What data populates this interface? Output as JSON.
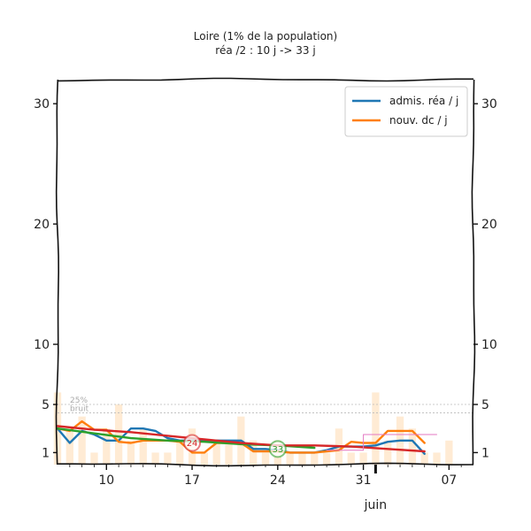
{
  "chart_data": {
    "type": "line",
    "title": "Loire (1% de la population)",
    "subtitle": "réa /2 : 10 j -> 33 j",
    "x_start": "2020-05-06",
    "x_end": "2020-06-09",
    "xticks": [
      {
        "date": "2020-05-10",
        "label": "10"
      },
      {
        "date": "2020-05-17",
        "label": "17"
      },
      {
        "date": "2020-05-24",
        "label": "24"
      },
      {
        "date": "2020-05-31",
        "label": "31"
      },
      {
        "date": "2020-06-07",
        "label": "07"
      }
    ],
    "month_label": {
      "date": "2020-06-01",
      "label": "juin"
    },
    "ylim": [
      0,
      32
    ],
    "yticks": [
      1,
      5,
      10,
      20,
      30
    ],
    "grid": false,
    "legend_position": "top-right",
    "reference_lines": [
      {
        "y": 5,
        "label": "25%"
      },
      {
        "y": 4.3,
        "label": "bruit"
      }
    ],
    "series": [
      {
        "name": "admis. réa / j",
        "color": "#1f77b4",
        "x": [
          "2020-05-06",
          "2020-05-07",
          "2020-05-08",
          "2020-05-09",
          "2020-05-10",
          "2020-05-11",
          "2020-05-12",
          "2020-05-13",
          "2020-05-14",
          "2020-05-15",
          "2020-05-16",
          "2020-05-17",
          "2020-05-18",
          "2020-05-19",
          "2020-05-20",
          "2020-05-21",
          "2020-05-22",
          "2020-05-23",
          "2020-05-24",
          "2020-05-25",
          "2020-05-26",
          "2020-05-27",
          "2020-05-28",
          "2020-05-29",
          "2020-05-30",
          "2020-05-31",
          "2020-06-01",
          "2020-06-02",
          "2020-06-03",
          "2020-06-04",
          "2020-06-05"
        ],
        "y": [
          3,
          1.8,
          2.8,
          2.5,
          2,
          2,
          3,
          3,
          2.8,
          2.2,
          2,
          2,
          2,
          2,
          2,
          2,
          1.3,
          1.3,
          1.2,
          1,
          1,
          1,
          1.2,
          1.5,
          1.5,
          1.5,
          1.6,
          1.9,
          2,
          2,
          0.9
        ]
      },
      {
        "name": "nouv. dc / j",
        "color": "#ff7f0e",
        "x": [
          "2020-05-06",
          "2020-05-07",
          "2020-05-08",
          "2020-05-09",
          "2020-05-10",
          "2020-05-11",
          "2020-05-12",
          "2020-05-13",
          "2020-05-14",
          "2020-05-15",
          "2020-05-16",
          "2020-05-17",
          "2020-05-18",
          "2020-05-19",
          "2020-05-20",
          "2020-05-21",
          "2020-05-22",
          "2020-05-23",
          "2020-05-24",
          "2020-05-25",
          "2020-05-26",
          "2020-05-27",
          "2020-05-28",
          "2020-05-29",
          "2020-05-30",
          "2020-05-31",
          "2020-06-01",
          "2020-06-02",
          "2020-06-03",
          "2020-06-04",
          "2020-06-05"
        ],
        "y": [
          3,
          2.8,
          3.6,
          2.9,
          2.9,
          1.9,
          1.8,
          2,
          2,
          2,
          1.9,
          1,
          1,
          1.8,
          1.8,
          1.8,
          1.1,
          1.1,
          1.1,
          1,
          1,
          1,
          1.1,
          1.2,
          1.9,
          1.8,
          1.8,
          2.8,
          2.8,
          2.8,
          1.8
        ]
      },
      {
        "name": "",
        "color": "#2ca02c",
        "x": [
          "2020-05-06",
          "2020-05-09",
          "2020-05-12",
          "2020-05-15",
          "2020-05-18",
          "2020-05-21",
          "2020-05-24",
          "2020-05-27"
        ],
        "y": [
          3,
          2.6,
          2.2,
          2,
          1.9,
          1.7,
          1.6,
          1.4
        ]
      },
      {
        "name": "",
        "color": "#d62728",
        "x": [
          "2020-05-06",
          "2020-05-09",
          "2020-05-12",
          "2020-05-15",
          "2020-05-18",
          "2020-05-21",
          "2020-05-24",
          "2020-05-27",
          "2020-05-30",
          "2020-06-02",
          "2020-06-05"
        ],
        "y": [
          3.2,
          2.9,
          2.7,
          2.4,
          2.1,
          1.8,
          1.6,
          1.6,
          1.5,
          1.3,
          1.1
        ]
      },
      {
        "name": "",
        "color": "#e377c2",
        "x": [
          "2020-05-28",
          "2020-05-31",
          "2020-05-31",
          "2020-06-06"
        ],
        "y": [
          1.2,
          1.2,
          2.5,
          2.5
        ]
      }
    ],
    "bars": {
      "color": "#ffe8cc",
      "x": [
        "2020-05-06",
        "2020-05-07",
        "2020-05-08",
        "2020-05-09",
        "2020-05-10",
        "2020-05-11",
        "2020-05-12",
        "2020-05-13",
        "2020-05-14",
        "2020-05-15",
        "2020-05-16",
        "2020-05-17",
        "2020-05-18",
        "2020-05-19",
        "2020-05-20",
        "2020-05-21",
        "2020-05-22",
        "2020-05-23",
        "2020-05-24",
        "2020-05-25",
        "2020-05-26",
        "2020-05-27",
        "2020-05-28",
        "2020-05-29",
        "2020-05-30",
        "2020-05-31",
        "2020-06-01",
        "2020-06-02",
        "2020-06-03",
        "2020-06-04",
        "2020-06-05",
        "2020-06-06",
        "2020-06-07"
      ],
      "y": [
        6,
        3,
        4,
        1,
        3,
        5,
        2,
        3,
        1,
        1,
        2,
        3,
        1,
        2,
        2,
        4,
        2,
        1,
        2,
        1,
        1,
        1,
        1,
        3,
        1,
        1,
        6,
        2,
        4,
        3,
        1,
        1,
        2
      ]
    },
    "markers": [
      {
        "date": "2020-05-17",
        "y": 1.8,
        "label": "24",
        "color": "#d62728"
      },
      {
        "date": "2020-05-24",
        "y": 1.3,
        "label": "33",
        "color": "#2ca02c"
      }
    ]
  }
}
